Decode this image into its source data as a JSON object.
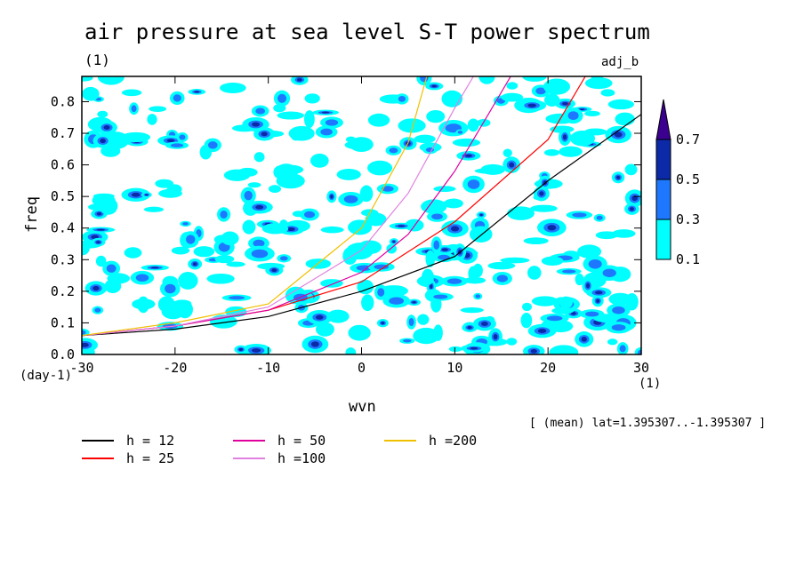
{
  "chart_data": {
    "type": "heatmap",
    "title": "air pressure at sea level S-T power spectrum",
    "title_unit": "(1)",
    "tag": "adj_b",
    "xlabel": "wvn",
    "ylabel": "freq",
    "xunit": "(1)",
    "yunit": "(day-1)",
    "xlim": [
      -30,
      30
    ],
    "ylim": [
      0,
      0.88
    ],
    "xticks": [
      "-30",
      "-20",
      "-10",
      "0",
      "10",
      "20",
      "30"
    ],
    "yticks": [
      "0.0",
      "0.1",
      "0.2",
      "0.3",
      "0.4",
      "0.5",
      "0.6",
      "0.7",
      "0.8"
    ],
    "colorbar": {
      "levels": [
        "0.1",
        "0.3",
        "0.5",
        "0.7"
      ],
      "colors": [
        "#00ffff",
        "#1e78ff",
        "#0c2aa8",
        "#3c0090"
      ],
      "extend": "max"
    },
    "note": "[ (mean) lat=1.395307..-1.395307 ]",
    "series": [
      {
        "name": "h = 12",
        "color": "#000000"
      },
      {
        "name": "h = 25",
        "color": "#ff0000"
      },
      {
        "name": "h = 50",
        "color": "#e000a0"
      },
      {
        "name": "h =100",
        "color": "#e080e0"
      },
      {
        "name": "h =200",
        "color": "#f0c000"
      }
    ],
    "curve_points": {
      "h = 12": [
        [
          -30,
          0.06
        ],
        [
          -20,
          0.08
        ],
        [
          -10,
          0.12
        ],
        [
          0,
          0.2
        ],
        [
          10,
          0.31
        ],
        [
          20,
          0.55
        ],
        [
          30,
          0.76
        ]
      ],
      "h = 25": [
        [
          -30,
          0.06
        ],
        [
          -20,
          0.09
        ],
        [
          -10,
          0.14
        ],
        [
          0,
          0.23
        ],
        [
          10,
          0.42
        ],
        [
          20,
          0.68
        ],
        [
          24,
          0.88
        ]
      ],
      "h = 50": [
        [
          -30,
          0.06
        ],
        [
          -20,
          0.09
        ],
        [
          -10,
          0.14
        ],
        [
          0,
          0.26
        ],
        [
          5,
          0.38
        ],
        [
          10,
          0.58
        ],
        [
          16,
          0.88
        ]
      ],
      "h =100": [
        [
          -30,
          0.06
        ],
        [
          -20,
          0.09
        ],
        [
          -10,
          0.15
        ],
        [
          0,
          0.33
        ],
        [
          5,
          0.51
        ],
        [
          10,
          0.78
        ],
        [
          12,
          0.88
        ]
      ],
      "h =200": [
        [
          -30,
          0.06
        ],
        [
          -20,
          0.1
        ],
        [
          -10,
          0.16
        ],
        [
          0,
          0.4
        ],
        [
          5,
          0.67
        ],
        [
          7,
          0.88
        ]
      ]
    }
  }
}
